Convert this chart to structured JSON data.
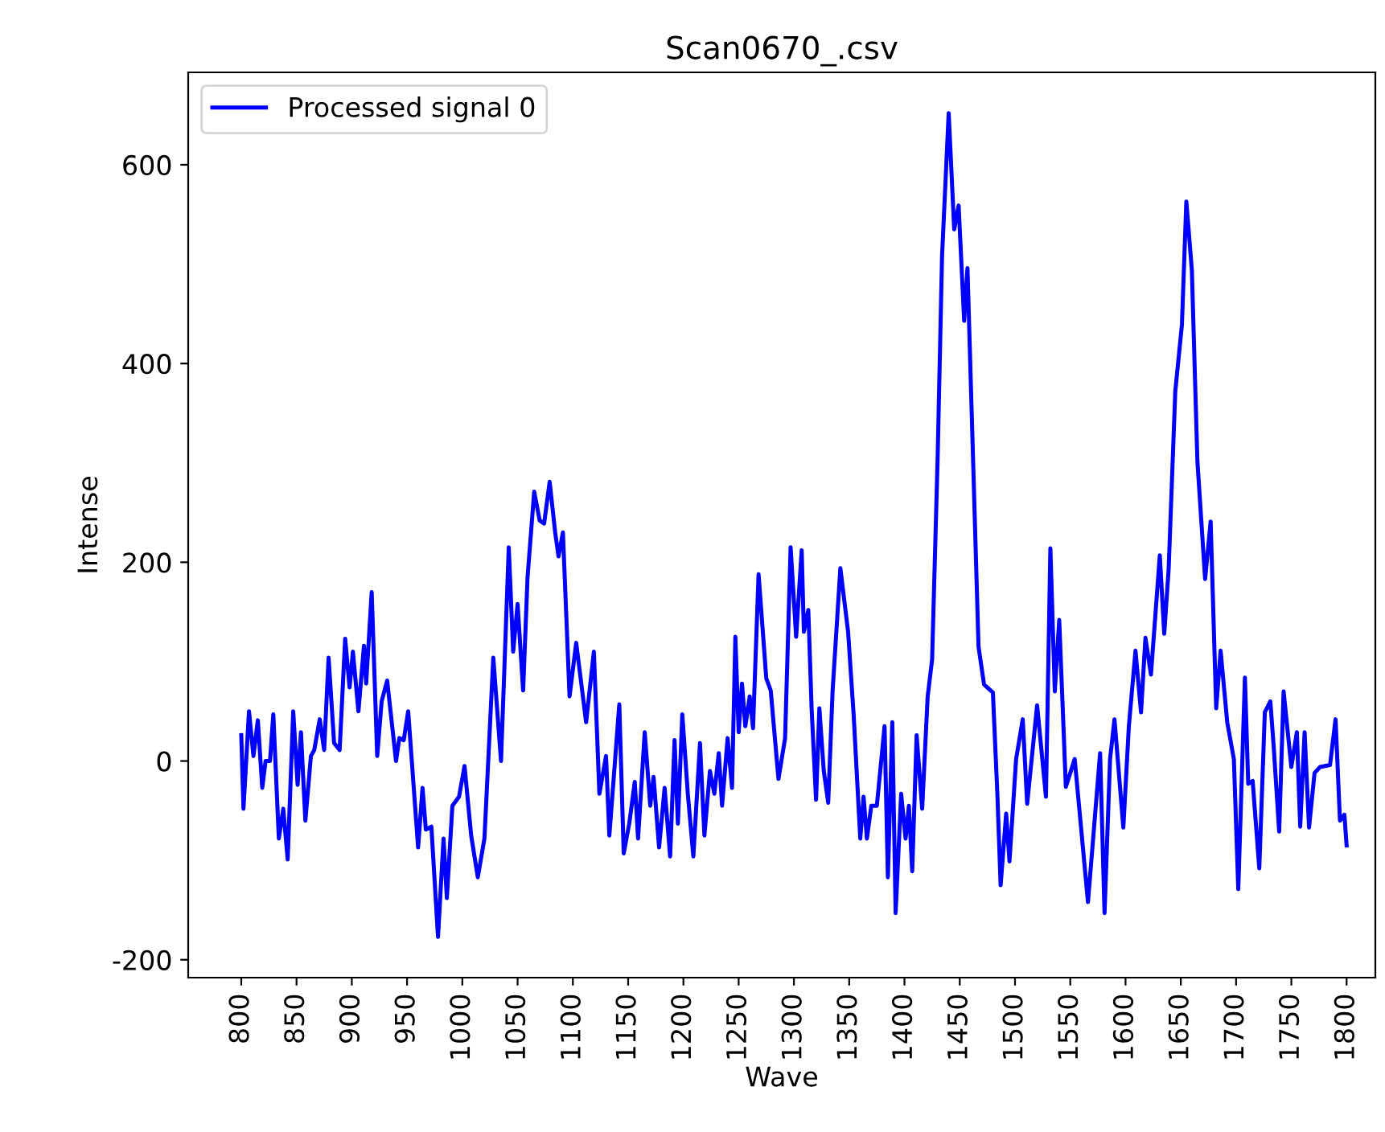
{
  "chart_data": {
    "type": "line",
    "title": "Scan0670_.csv",
    "xlabel": "Wave",
    "ylabel": "Intense",
    "legend": "top left",
    "grid": false,
    "marker": "none",
    "line_style": "solid",
    "xlim": [
      752,
      1826
    ],
    "ylim": [
      -218,
      693
    ],
    "xticks": [
      800,
      850,
      900,
      950,
      1000,
      1050,
      1100,
      1150,
      1200,
      1250,
      1300,
      1350,
      1400,
      1450,
      1500,
      1550,
      1600,
      1650,
      1700,
      1750,
      1800
    ],
    "yticks": [
      -200,
      0,
      200,
      400,
      600
    ],
    "series": [
      {
        "name": "Processed signal 0",
        "color": "#0000ff",
        "x": [
          800,
          802,
          807,
          811,
          815,
          819,
          822,
          826,
          829,
          834,
          838,
          842,
          847,
          851,
          854,
          858,
          863,
          866,
          871,
          875,
          879,
          884,
          889,
          894,
          898,
          901,
          906,
          911,
          913,
          918,
          923,
          927,
          932,
          940,
          943,
          947,
          951,
          960,
          964,
          967,
          972,
          978,
          983,
          986,
          991,
          997,
          1002,
          1008,
          1014,
          1020,
          1028,
          1035,
          1042,
          1046,
          1050,
          1055,
          1059,
          1065,
          1070,
          1074,
          1079,
          1084,
          1087,
          1091,
          1097,
          1103,
          1112,
          1119,
          1124,
          1130,
          1133,
          1142,
          1146,
          1151,
          1156,
          1159,
          1165,
          1170,
          1173,
          1178,
          1183,
          1188,
          1192,
          1195,
          1199,
          1204,
          1209,
          1215,
          1219,
          1224,
          1228,
          1232,
          1235,
          1240,
          1244,
          1247,
          1250,
          1253,
          1256,
          1260,
          1263,
          1268,
          1275,
          1279,
          1286,
          1292,
          1297,
          1302,
          1307,
          1309,
          1313,
          1316,
          1320,
          1323,
          1327,
          1331,
          1335,
          1342,
          1349,
          1354,
          1360,
          1363,
          1366,
          1370,
          1375,
          1382,
          1385,
          1389,
          1392,
          1397,
          1401,
          1404,
          1407,
          1411,
          1416,
          1421,
          1425,
          1430,
          1434,
          1440,
          1445,
          1449,
          1454,
          1457,
          1461,
          1467,
          1472,
          1480,
          1484,
          1487,
          1492,
          1495,
          1501,
          1507,
          1511,
          1520,
          1528,
          1532,
          1536,
          1540,
          1546,
          1554,
          1566,
          1577,
          1581,
          1586,
          1590,
          1598,
          1603,
          1609,
          1614,
          1618,
          1623,
          1631,
          1635,
          1639,
          1645,
          1651,
          1655,
          1660,
          1665,
          1672,
          1677,
          1682,
          1686,
          1692,
          1698,
          1702,
          1708,
          1711,
          1715,
          1721,
          1726,
          1731,
          1734,
          1739,
          1743,
          1750,
          1755,
          1758,
          1762,
          1766,
          1771,
          1776,
          1785,
          1790,
          1794,
          1798,
          1800
        ],
        "values": [
          26,
          -48,
          50,
          5,
          41,
          -27,
          0,
          0,
          47,
          -78,
          -48,
          -99,
          50,
          -24,
          29,
          -60,
          5,
          11,
          42,
          11,
          104,
          18,
          11,
          123,
          74,
          110,
          50,
          116,
          78,
          170,
          5,
          60,
          81,
          0,
          23,
          21,
          50,
          -87,
          -27,
          -69,
          -66,
          -177,
          -78,
          -138,
          -45,
          -36,
          -5,
          -75,
          -117,
          -78,
          104,
          0,
          215,
          110,
          158,
          71,
          185,
          271,
          242,
          239,
          281,
          230,
          206,
          230,
          65,
          119,
          39,
          110,
          -33,
          5,
          -75,
          57,
          -93,
          -63,
          -21,
          -78,
          29,
          -45,
          -16,
          -87,
          -27,
          -96,
          21,
          -63,
          47,
          -33,
          -96,
          18,
          -75,
          -10,
          -33,
          8,
          -45,
          23,
          -27,
          125,
          29,
          78,
          35,
          65,
          33,
          188,
          83,
          71,
          -18,
          23,
          215,
          125,
          212,
          130,
          152,
          53,
          -39,
          53,
          -10,
          -42,
          71,
          194,
          130,
          47,
          -78,
          -36,
          -78,
          -45,
          -45,
          35,
          -117,
          39,
          -153,
          -33,
          -78,
          -45,
          -111,
          26,
          -48,
          65,
          102,
          305,
          508,
          652,
          535,
          559,
          443,
          496,
          344,
          115,
          77,
          69,
          -32,
          -125,
          -53,
          -101,
          2,
          42,
          -43,
          56,
          -36,
          214,
          70,
          142,
          -26,
          2,
          -142,
          8,
          -153,
          2,
          42,
          -67,
          35,
          111,
          49,
          124,
          87,
          207,
          128,
          193,
          372,
          439,
          563,
          494,
          302,
          183,
          241,
          53,
          111,
          39,
          2,
          -129,
          84,
          -23,
          -20,
          -108,
          49,
          60,
          15,
          -71,
          70,
          -6,
          29,
          -66,
          29,
          -67,
          -12,
          -6,
          -4,
          42,
          -60,
          -54,
          -85
        ]
      }
    ]
  }
}
